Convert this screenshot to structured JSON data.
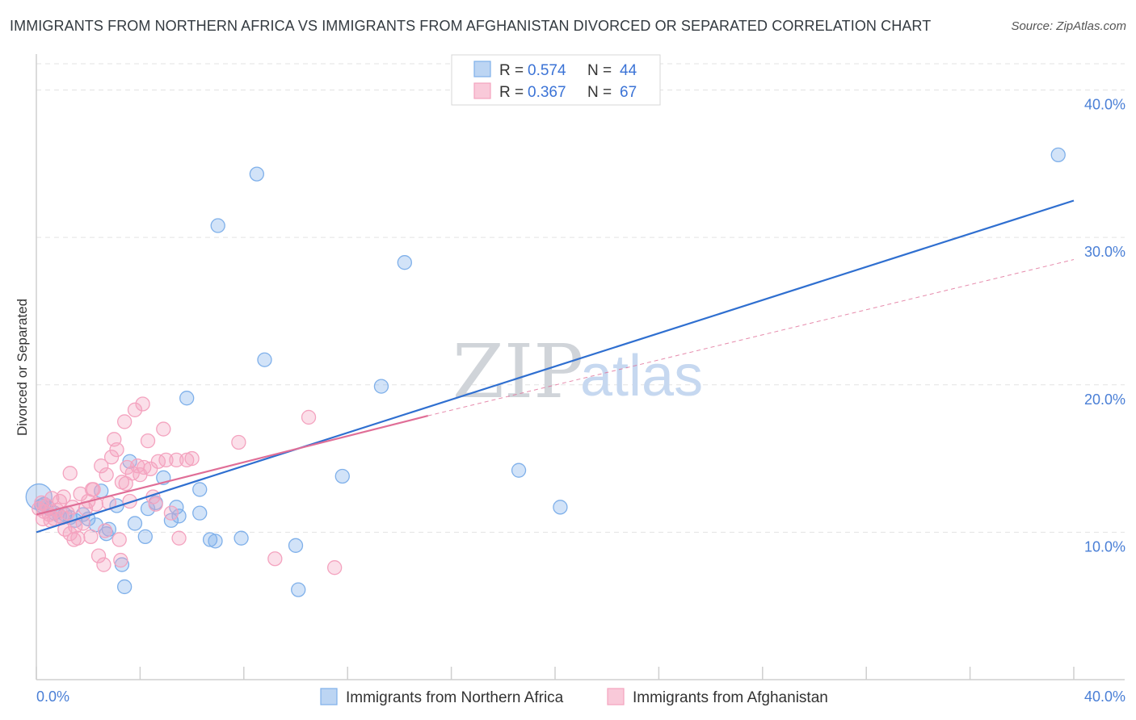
{
  "title": "IMMIGRANTS FROM NORTHERN AFRICA VS IMMIGRANTS FROM AFGHANISTAN DIVORCED OR SEPARATED CORRELATION CHART",
  "source": "Source: ZipAtlas.com",
  "watermark": {
    "zip": "ZIP",
    "atlas": "atlas"
  },
  "chart_data": {
    "type": "scatter",
    "title": "IMMIGRANTS FROM NORTHERN AFRICA VS IMMIGRANTS FROM AFGHANISTAN DIVORCED OR SEPARATED CORRELATION CHART",
    "xlabel": "",
    "ylabel": "Divorced or Separated",
    "xlim": [
      0,
      40
    ],
    "ylim": [
      0,
      42
    ],
    "x_tick_labels": {
      "left": "0.0%",
      "right": "40.0%"
    },
    "y_ticks": [
      {
        "value": 10,
        "label": "10.0%"
      },
      {
        "value": 20,
        "label": "20.0%"
      },
      {
        "value": 30,
        "label": "30.0%"
      },
      {
        "value": 40,
        "label": "40.0%"
      }
    ],
    "legend": [
      {
        "r_label": "R = ",
        "r_value": "0.574",
        "n_label": "N = ",
        "n_value": "44"
      },
      {
        "r_label": "R = ",
        "r_value": "0.367",
        "n_label": "N = ",
        "n_value": "67"
      }
    ],
    "series": [
      {
        "name": "Immigrants from Northern Africa",
        "color": "#7fb0ea",
        "line_color": "#2f6fd0",
        "trend": {
          "x0": 0,
          "y0": 10.0,
          "x1": 40,
          "y1": 32.5,
          "dashed_from": null
        },
        "points": [
          [
            0.1,
            12.4
          ],
          [
            0.3,
            11.9
          ],
          [
            0.5,
            11.6
          ],
          [
            0.7,
            11.3
          ],
          [
            0.9,
            11.1
          ],
          [
            1.1,
            11.2
          ],
          [
            1.3,
            11.0
          ],
          [
            1.5,
            10.8
          ],
          [
            1.8,
            11.2
          ],
          [
            2.0,
            10.9
          ],
          [
            2.3,
            10.5
          ],
          [
            2.5,
            12.8
          ],
          [
            2.7,
            9.9
          ],
          [
            2.8,
            10.2
          ],
          [
            3.1,
            11.8
          ],
          [
            3.3,
            7.8
          ],
          [
            3.4,
            6.3
          ],
          [
            3.6,
            14.8
          ],
          [
            3.8,
            10.6
          ],
          [
            4.2,
            9.7
          ],
          [
            4.3,
            11.6
          ],
          [
            4.6,
            12.0
          ],
          [
            4.9,
            13.7
          ],
          [
            5.2,
            10.8
          ],
          [
            5.4,
            11.7
          ],
          [
            5.5,
            11.1
          ],
          [
            5.8,
            19.1
          ],
          [
            6.3,
            12.9
          ],
          [
            6.3,
            11.3
          ],
          [
            6.7,
            9.5
          ],
          [
            6.9,
            9.4
          ],
          [
            7.0,
            30.8
          ],
          [
            7.9,
            9.6
          ],
          [
            8.5,
            34.3
          ],
          [
            8.8,
            21.7
          ],
          [
            10.0,
            9.1
          ],
          [
            10.1,
            6.1
          ],
          [
            11.8,
            13.8
          ],
          [
            13.3,
            19.9
          ],
          [
            14.2,
            28.3
          ],
          [
            18.6,
            14.2
          ],
          [
            20.2,
            11.7
          ],
          [
            39.4,
            35.6
          ],
          [
            0.2,
            11.8
          ]
        ]
      },
      {
        "name": "Immigrants from Afghanistan",
        "color": "#f4a3bf",
        "line_color": "#e06e97",
        "trend": {
          "x0": 0,
          "y0": 11.2,
          "x1": 15.1,
          "y1": 17.9,
          "dashed_to_x": 40,
          "dashed_to_y": 28.5
        },
        "points": [
          [
            0.1,
            11.6
          ],
          [
            0.2,
            12.0
          ],
          [
            0.3,
            11.4
          ],
          [
            0.4,
            11.8
          ],
          [
            0.5,
            11.2
          ],
          [
            0.6,
            12.3
          ],
          [
            0.7,
            10.9
          ],
          [
            0.8,
            11.5
          ],
          [
            0.9,
            12.1
          ],
          [
            1.0,
            11.0
          ],
          [
            1.1,
            10.2
          ],
          [
            1.2,
            11.3
          ],
          [
            1.3,
            9.9
          ],
          [
            1.4,
            11.7
          ],
          [
            1.5,
            10.4
          ],
          [
            1.6,
            9.6
          ],
          [
            1.3,
            14.0
          ],
          [
            1.7,
            12.6
          ],
          [
            1.8,
            10.6
          ],
          [
            1.9,
            11.6
          ],
          [
            2.0,
            12.1
          ],
          [
            2.1,
            9.7
          ],
          [
            2.2,
            12.9
          ],
          [
            2.3,
            11.9
          ],
          [
            2.4,
            8.4
          ],
          [
            2.5,
            14.5
          ],
          [
            2.6,
            7.8
          ],
          [
            2.7,
            13.9
          ],
          [
            2.8,
            12.0
          ],
          [
            2.9,
            15.1
          ],
          [
            3.0,
            16.3
          ],
          [
            3.1,
            15.6
          ],
          [
            3.2,
            9.5
          ],
          [
            3.3,
            13.4
          ],
          [
            3.4,
            17.5
          ],
          [
            3.5,
            14.4
          ],
          [
            3.6,
            12.1
          ],
          [
            3.7,
            14.0
          ],
          [
            3.8,
            18.3
          ],
          [
            3.9,
            14.5
          ],
          [
            4.0,
            13.9
          ],
          [
            4.1,
            18.7
          ],
          [
            4.3,
            16.2
          ],
          [
            4.4,
            14.3
          ],
          [
            4.5,
            12.4
          ],
          [
            4.7,
            14.8
          ],
          [
            4.9,
            17.0
          ],
          [
            5.0,
            14.9
          ],
          [
            5.2,
            11.3
          ],
          [
            5.4,
            14.9
          ],
          [
            5.8,
            14.9
          ],
          [
            6.0,
            15.0
          ],
          [
            7.8,
            16.1
          ],
          [
            9.2,
            8.2
          ],
          [
            10.5,
            17.8
          ],
          [
            11.5,
            7.6
          ],
          [
            0.25,
            10.9
          ],
          [
            1.05,
            12.4
          ],
          [
            2.65,
            10.1
          ],
          [
            3.25,
            8.1
          ],
          [
            4.6,
            11.9
          ],
          [
            5.5,
            9.6
          ],
          [
            1.45,
            9.5
          ],
          [
            0.55,
            10.8
          ],
          [
            2.15,
            12.9
          ],
          [
            3.45,
            13.3
          ],
          [
            4.15,
            14.4
          ]
        ]
      }
    ]
  },
  "bottom_legend": [
    {
      "label": "Immigrants from Northern Africa"
    },
    {
      "label": "Immigrants from Afghanistan"
    }
  ]
}
